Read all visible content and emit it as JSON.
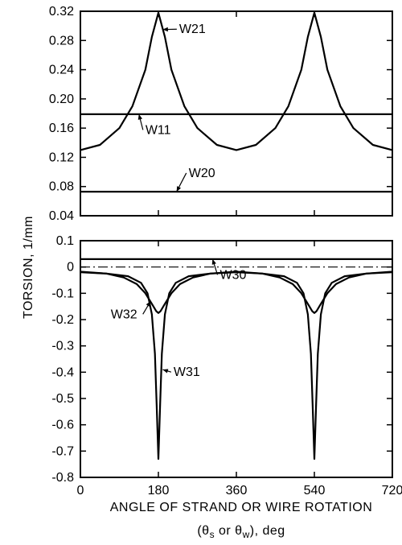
{
  "chart_data": {
    "type": "line",
    "xlabel_line1": "ANGLE OF STRAND OR WIRE ROTATION",
    "xlabel_line2": "(θs or θw), deg",
    "ylabel": "TORSION, 1/mm",
    "x_ticks": [
      "0",
      "180",
      "360",
      "540",
      "720"
    ],
    "xlim": [
      0,
      720
    ],
    "panels": [
      {
        "ylim": [
          0.04,
          0.32
        ],
        "y_ticks": [
          0.32,
          0.28,
          0.24,
          0.2,
          0.16,
          0.12,
          0.08,
          0.04
        ],
        "y_tick_labels": [
          "0.32",
          "0.28",
          "0.24",
          "0.20",
          "0.16",
          "0.12",
          "0.08",
          "0.04"
        ],
        "series": [
          {
            "name": "W21",
            "style": "solid",
            "x": [
              0,
              45,
              90,
              120,
              150,
              165,
              180,
              195,
              210,
              240,
              270,
              315,
              360,
              405,
              450,
              480,
              510,
              525,
              540,
              555,
              570,
              600,
              630,
              675,
              720
            ],
            "y": [
              0.13,
              0.137,
              0.16,
              0.19,
              0.24,
              0.285,
              0.318,
              0.285,
              0.24,
              0.19,
              0.16,
              0.137,
              0.13,
              0.137,
              0.16,
              0.19,
              0.24,
              0.285,
              0.318,
              0.285,
              0.24,
              0.19,
              0.16,
              0.137,
              0.13
            ]
          },
          {
            "name": "W11",
            "style": "solid",
            "x": [
              0,
              720
            ],
            "y": [
              0.179,
              0.179
            ]
          },
          {
            "name": "W20",
            "style": "solid",
            "x": [
              0,
              720
            ],
            "y": [
              0.073,
              0.073
            ]
          }
        ],
        "annotations": [
          {
            "text": "W21",
            "series": "W21",
            "point": [
              190,
              0.295
            ],
            "label": [
              228,
              0.29
            ]
          },
          {
            "text": "W11",
            "series": "W11",
            "point": [
              135,
              0.179
            ],
            "label": [
              150,
              0.152
            ]
          },
          {
            "text": "W20",
            "series": "W20",
            "point": [
              222,
              0.073
            ],
            "label": [
              250,
              0.093
            ]
          }
        ]
      },
      {
        "ylim": [
          -0.8,
          0.1
        ],
        "y_ticks": [
          0.1,
          0,
          -0.1,
          -0.2,
          -0.3,
          -0.4,
          -0.5,
          -0.6,
          -0.7,
          -0.8
        ],
        "y_tick_labels": [
          "0.1",
          "0",
          "-0.1",
          "-0.2",
          "-0.3",
          "-0.4",
          "-0.5",
          "-0.6",
          "-0.7",
          "-0.8"
        ],
        "series": [
          {
            "name": "W30",
            "style": "solid",
            "x": [
              0,
              720
            ],
            "y": [
              0.03,
              0.03
            ]
          },
          {
            "name": "zero",
            "style": "dashdot",
            "x": [
              0,
              720
            ],
            "y": [
              0,
              0
            ]
          },
          {
            "name": "W32",
            "style": "solid",
            "x": [
              0,
              60,
              100,
              130,
              150,
              165,
              175,
              180,
              185,
              195,
              210,
              230,
              260,
              300,
              360,
              420,
              460,
              490,
              510,
              525,
              535,
              540,
              545,
              555,
              570,
              590,
              620,
              660,
              720
            ],
            "y": [
              -0.018,
              -0.025,
              -0.04,
              -0.065,
              -0.1,
              -0.14,
              -0.168,
              -0.175,
              -0.168,
              -0.14,
              -0.1,
              -0.065,
              -0.04,
              -0.025,
              -0.018,
              -0.025,
              -0.04,
              -0.065,
              -0.1,
              -0.14,
              -0.168,
              -0.175,
              -0.168,
              -0.14,
              -0.1,
              -0.065,
              -0.04,
              -0.025,
              -0.018
            ]
          },
          {
            "name": "W31",
            "style": "solid",
            "x": [
              0,
              60,
              110,
              140,
              155,
              165,
              172,
              176,
              180,
              184,
              188,
              195,
              205,
              220,
              250,
              300,
              360,
              420,
              470,
              500,
              515,
              525,
              532,
              536,
              540,
              544,
              548,
              555,
              565,
              580,
              610,
              660,
              720
            ],
            "y": [
              -0.02,
              -0.025,
              -0.035,
              -0.06,
              -0.1,
              -0.18,
              -0.33,
              -0.52,
              -0.73,
              -0.52,
              -0.33,
              -0.18,
              -0.1,
              -0.06,
              -0.035,
              -0.025,
              -0.02,
              -0.025,
              -0.035,
              -0.06,
              -0.1,
              -0.18,
              -0.33,
              -0.52,
              -0.73,
              -0.52,
              -0.33,
              -0.18,
              -0.1,
              -0.06,
              -0.035,
              -0.025,
              -0.02
            ]
          }
        ],
        "annotations": [
          {
            "text": "W30",
            "series": "W30",
            "point": [
              305,
              0.03
            ],
            "label": [
              322,
              -0.045
            ]
          },
          {
            "text": "W32",
            "series": "W32",
            "point": [
              162,
              -0.13
            ],
            "label": [
              70,
              -0.195
            ]
          },
          {
            "text": "W31",
            "series": "W31",
            "point": [
              190,
              -0.39
            ],
            "label": [
              215,
              -0.415
            ]
          }
        ]
      }
    ]
  }
}
